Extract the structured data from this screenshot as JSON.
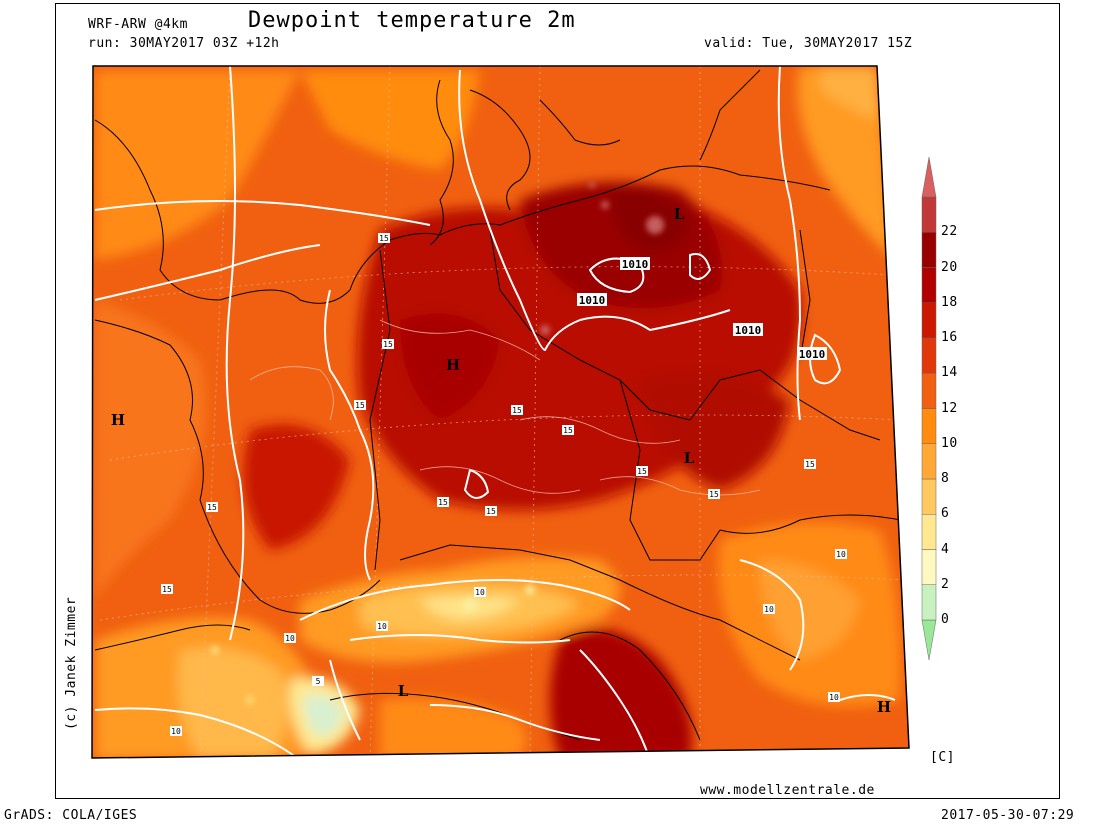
{
  "header": {
    "model": "WRF-ARW @4km",
    "title": "Dewpoint temperature 2m",
    "run": "run: 30MAY2017 03Z +12h",
    "valid": "valid: Tue, 30MAY2017 15Z"
  },
  "copyright": "(c) Janek Zimmer",
  "footer": {
    "website": "www.modellzentrale.de",
    "grads": "GrADS: COLA/IGES",
    "timestamp": "2017-05-30-07:29"
  },
  "colorbar": {
    "unit": "[C]",
    "ticks": [
      "-",
      "0",
      "2",
      "4",
      "6",
      "8",
      "10",
      "12",
      "14",
      "16",
      "18",
      "20",
      "22"
    ],
    "colors": [
      "#98e898",
      "#c8f0c0",
      "#fff8c0",
      "#ffe890",
      "#ffc860",
      "#ffa838",
      "#ff8c10",
      "#f06010",
      "#e03808",
      "#cc1800",
      "#b00000",
      "#980000",
      "#c03838",
      "#d86060"
    ]
  },
  "map": {
    "pressure_labels": [
      "1010",
      "1010",
      "1010",
      "1010"
    ],
    "system_markers": [
      "H",
      "H",
      "H",
      "L",
      "L",
      "L"
    ],
    "contour_labels": [
      "15",
      "15",
      "15",
      "15",
      "15",
      "15",
      "15",
      "15",
      "15",
      "15",
      "15",
      "15",
      "10",
      "10",
      "10",
      "10",
      "10",
      "10",
      "10",
      "5"
    ]
  }
}
